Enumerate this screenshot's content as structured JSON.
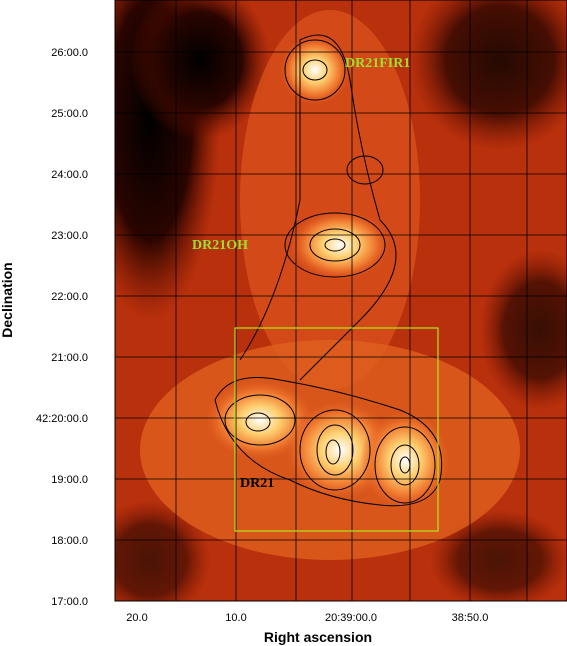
{
  "figure": {
    "x_label": "Right ascension",
    "y_label": "Declination",
    "x_ticks": [
      "20.0",
      "10.0",
      "20:39:00.0",
      "38:50.0"
    ],
    "y_ticks": [
      "26:00.0",
      "25:00.0",
      "24:00.0",
      "23:00.0",
      "22:00.0",
      "21:00.0",
      "42:20:00.0",
      "19:00.0",
      "18:00.0",
      "17:00.0"
    ],
    "annotations": [
      "DR21FIR1",
      "DR21OH",
      "DR21"
    ]
  }
}
